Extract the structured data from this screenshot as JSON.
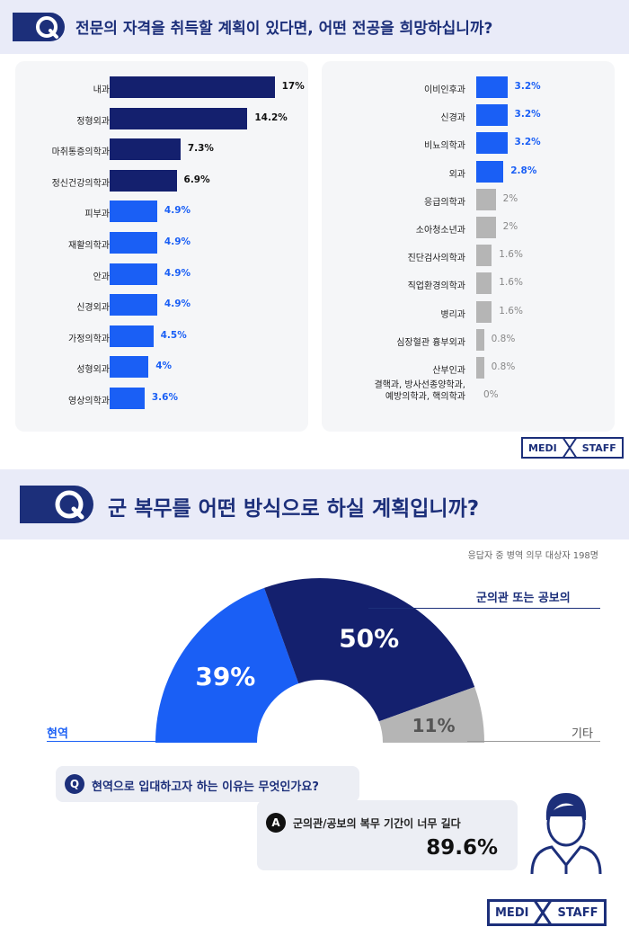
{
  "section1": {
    "question_badge": "Q",
    "title": "전문의 자격을 취득할 계획이 있다면, 어떤 전공을 희망하십니까?"
  },
  "chart_data": [
    {
      "type": "bar",
      "orientation": "horizontal",
      "categories": [
        "내과",
        "정형외과",
        "마취통증의학과",
        "정신건강의학과",
        "피부과",
        "재활의학과",
        "안과",
        "신경외과",
        "가정의학과",
        "성형외과",
        "영상의학과",
        "이비인후과",
        "신경과",
        "비뇨의학과",
        "외과",
        "응급의학과",
        "소아청소년과",
        "진단검사의학과",
        "직업환경의학과",
        "병리과",
        "심장혈관 흉부외과",
        "산부인과",
        "결핵과, 방사선종양학과, 예방의학과, 핵의학과"
      ],
      "values": [
        17,
        14.2,
        7.3,
        6.9,
        4.9,
        4.9,
        4.9,
        4.9,
        4.5,
        4,
        3.6,
        3.2,
        3.2,
        3.2,
        2.8,
        2,
        2,
        1.6,
        1.6,
        1.6,
        0.8,
        0.8,
        0
      ],
      "value_labels": [
        "17%",
        "14.2%",
        "7.3%",
        "6.9%",
        "4.9%",
        "4.9%",
        "4.9%",
        "4.9%",
        "4.5%",
        "4%",
        "3.6%",
        "3.2%",
        "3.2%",
        "3.2%",
        "2.8%",
        "2%",
        "2%",
        "1.6%",
        "1.6%",
        "1.6%",
        "0.8%",
        "0.8%",
        "0%"
      ],
      "label_lines": {
        "22": [
          "결핵과, 방사선종양학과,",
          "예방의학과, 핵의학과"
        ]
      },
      "unit": "%",
      "grid": false
    },
    {
      "type": "pie",
      "style": "half-donut",
      "categories": [
        "현역",
        "군의관 또는 공보의",
        "기타"
      ],
      "values": [
        39,
        50,
        11
      ],
      "value_labels": [
        "39%",
        "50%",
        "11%"
      ],
      "unit": "%"
    }
  ],
  "colors": {
    "navy": "#14206e",
    "blue": "#1a5ff5",
    "gray": "#b5b5b5",
    "title": "#1c2f7a",
    "blue_text": "#1a5ff5"
  },
  "logo": {
    "left": "MEDI",
    "right": "STAFF"
  },
  "section2": {
    "question_badge": "Q",
    "title": "군 복무를 어떤 방식으로 하실 계획입니까?",
    "note": "응답자 중 병역 의무 대상자 198명",
    "legend_left": "현역",
    "legend_top_right": "군의관 또는 공보의",
    "legend_right": "기타"
  },
  "followup": {
    "q_letter": "Q",
    "question": "현역으로 입대하고자 하는 이유는 무엇인가요?",
    "a_letter": "A",
    "answer": "군의관/공보의 복무 기간이 너무 길다",
    "answer_value": "89.6%",
    "avatar_icon": "person-avatar-icon"
  }
}
